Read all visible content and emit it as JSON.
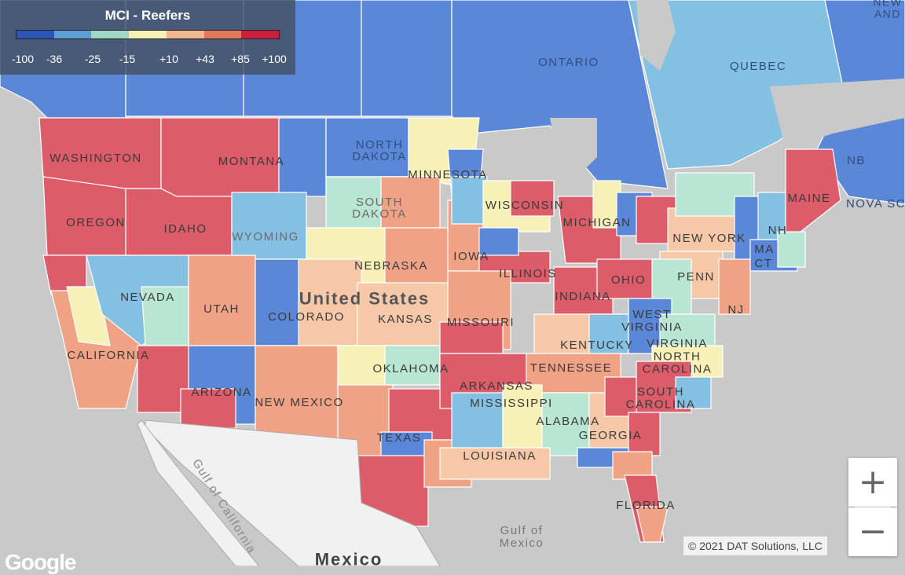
{
  "legend": {
    "title": "MCI - Reefers",
    "ticks": [
      "-100",
      "-36",
      "-25",
      "-15",
      "+10",
      "+43",
      "+85",
      "+100"
    ],
    "colors": [
      "#2b55b8",
      "#5aa0d6",
      "#9fd8c8",
      "#f5f0b3",
      "#f2b88f",
      "#e07a5a",
      "#c8203a"
    ]
  },
  "palette": {
    "dark_blue": "#5b87d8",
    "light_blue": "#84c0e2",
    "mint": "#b9e6d3",
    "yellow": "#f7f1b7",
    "peach": "#f6c8a8",
    "orange": "#f0a285",
    "red": "#dc5c6a",
    "land": "#f1f1f1",
    "water": "#c9c9c9"
  },
  "labels": {
    "ontario": "ONTARIO",
    "quebec": "QUEBEC",
    "new_brunswick": "NEW\nAND",
    "nb": "NB",
    "nova_scotia": "NOVA SC",
    "washington": "WASHINGTON",
    "oregon": "OREGON",
    "idaho": "IDAHO",
    "montana": "MONTANA",
    "north_dakota_1": "NORTH",
    "north_dakota_2": "DAKOTA",
    "south_dakota_1": "SOUTH",
    "south_dakota_2": "DAKOTA",
    "minnesota": "MINNESOTA",
    "wisconsin": "WISCONSIN",
    "michigan": "MICHIGAN",
    "wyoming": "WYOMING",
    "nebraska": "NEBRASKA",
    "iowa": "IOWA",
    "illinois": "ILLINOIS",
    "indiana": "INDIANA",
    "ohio": "OHIO",
    "penn": "PENN",
    "new_york": "NEW YORK",
    "nh": "NH",
    "ma": "MA",
    "ct": "CT",
    "nj": "NJ",
    "maine": "MAINE",
    "nevada": "NEVADA",
    "utah": "UTAH",
    "colorado": "COLORADO",
    "united_states": "United States",
    "kansas": "KANSAS",
    "missouri": "MISSOURI",
    "kentucky": "KENTUCKY",
    "west_virginia_1": "WEST",
    "west_virginia_2": "VIRGINIA",
    "virginia": "VIRGINIA",
    "california": "CALIFORNIA",
    "arizona": "ARIZONA",
    "new_mexico": "NEW MEXICO",
    "oklahoma": "OKLAHOMA",
    "arkansas": "ARKANSAS",
    "tennessee": "TENNESSEE",
    "north_carolina": "NORTH\nCAROLINA",
    "south_carolina": "SOUTH\nCAROLINA",
    "mississippi": "MISSISSIPPI",
    "alabama": "ALABAMA",
    "georgia": "GEORGIA",
    "texas": "TEXAS",
    "louisiana": "LOUISIANA",
    "florida": "FLORIDA",
    "mexico": "Mexico",
    "gulf_mexico_1": "Gulf of",
    "gulf_mexico_2": "Mexico",
    "gulf_california": "Gulf of California"
  },
  "controls": {
    "zoom_in": "+",
    "zoom_out": "−"
  },
  "attribution": {
    "copyright": "© 2021 DAT Solutions, LLC",
    "google": "Google"
  }
}
